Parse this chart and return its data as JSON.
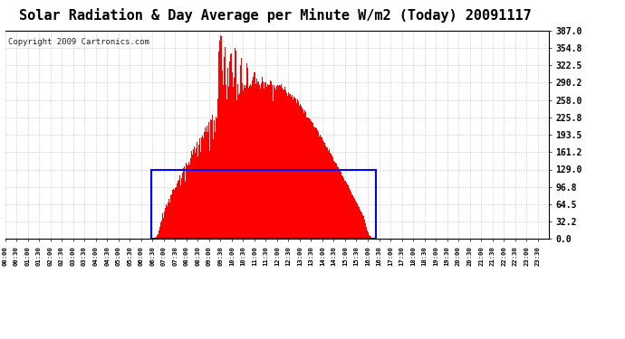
{
  "title": "Solar Radiation & Day Average per Minute W/m2 (Today) 20091117",
  "copyright": "Copyright 2009 Cartronics.com",
  "y_ticks": [
    0.0,
    32.2,
    64.5,
    96.8,
    129.0,
    161.2,
    193.5,
    225.8,
    258.0,
    290.2,
    322.5,
    354.8,
    387.0
  ],
  "y_max": 387.0,
  "y_min": 0.0,
  "total_minutes": 1440,
  "sunrise_minute": 386,
  "sunset_minute": 981,
  "avg_value": 129.0,
  "bg_color": "#ffffff",
  "bar_color": "#ff0000",
  "avg_line_color": "#0000ff",
  "grid_color": "#aaaaaa",
  "border_color": "#000000",
  "title_fontsize": 11,
  "copyright_fontsize": 6.5
}
